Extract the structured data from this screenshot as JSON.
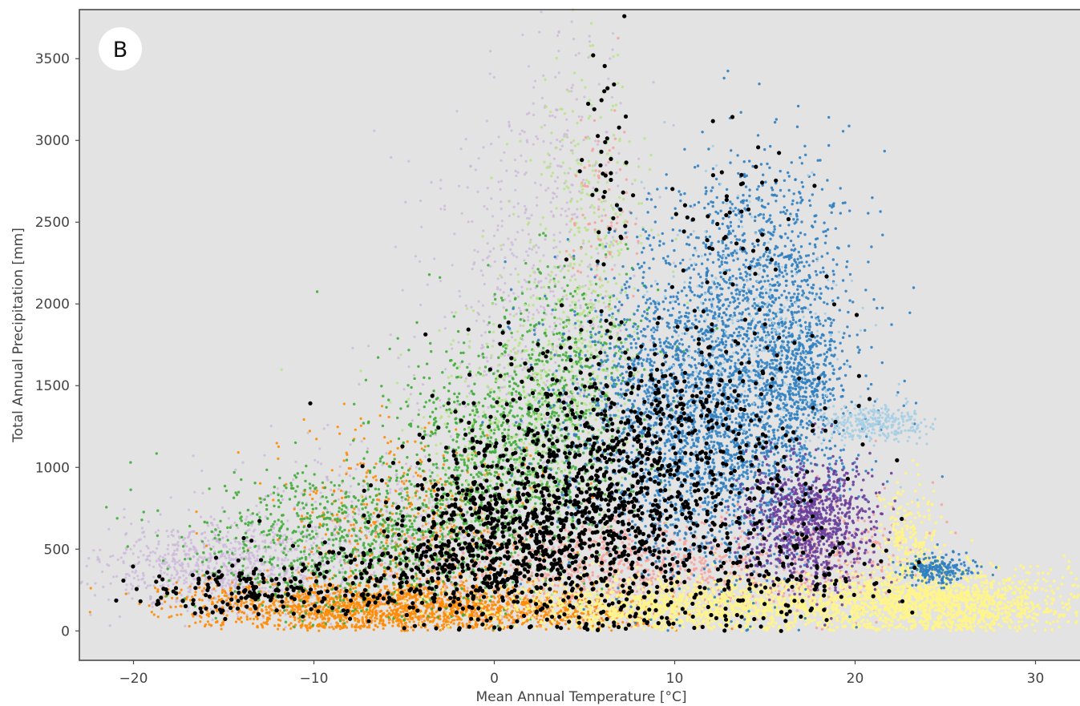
{
  "chart_data": {
    "type": "scatter",
    "panel_label": "B",
    "xlabel": "Mean Annual Temperature [°C]",
    "ylabel": "Total Annual Precipitation [mm]",
    "xlim": [
      -23,
      33
    ],
    "ylim": [
      -180,
      3800
    ],
    "xticks": [
      -20,
      -10,
      0,
      10,
      20,
      30
    ],
    "xtick_labels": [
      "−20",
      "−10",
      "0",
      "10",
      "20",
      "30"
    ],
    "yticks": [
      0,
      500,
      1000,
      1500,
      2000,
      2500,
      3000,
      3500
    ],
    "ytick_labels": [
      "0",
      "500",
      "1000",
      "1500",
      "2000",
      "2500",
      "3000",
      "3500"
    ],
    "grid": false,
    "background_color": "#e3e3e3",
    "series": [
      {
        "color": "#cbb6d9",
        "size": 1.6,
        "opacity": 0.75,
        "clusters": [
          {
            "cx": -15,
            "cy": 380,
            "sx": 3.2,
            "sy": 140,
            "n": 900
          },
          {
            "cx": -6,
            "cy": 650,
            "sx": 4.5,
            "sy": 260,
            "n": 500
          },
          {
            "cx": 2,
            "cy": 1900,
            "sx": 3.2,
            "sy": 650,
            "n": 520
          },
          {
            "cx": 3.5,
            "cy": 2900,
            "sx": 1.6,
            "sy": 450,
            "n": 160
          }
        ]
      },
      {
        "color": "#ff8a00",
        "size": 1.6,
        "opacity": 0.9,
        "clusters": [
          {
            "cx": -7,
            "cy": 150,
            "sx": 5,
            "sy": 80,
            "n": 1600
          },
          {
            "cx": -4,
            "cy": 700,
            "sx": 4,
            "sy": 280,
            "n": 450
          },
          {
            "cx": 2,
            "cy": 120,
            "sx": 4,
            "sy": 60,
            "n": 500
          }
        ]
      },
      {
        "color": "#40ad3a",
        "size": 1.7,
        "opacity": 0.9,
        "clusters": [
          {
            "cx": -8,
            "cy": 550,
            "sx": 4.5,
            "sy": 220,
            "n": 900
          },
          {
            "cx": 0,
            "cy": 1050,
            "sx": 3.2,
            "sy": 380,
            "n": 1000
          },
          {
            "cx": 4,
            "cy": 1500,
            "sx": 2.2,
            "sy": 400,
            "n": 420
          }
        ]
      },
      {
        "color": "#b9e48a",
        "size": 1.7,
        "opacity": 0.85,
        "clusters": [
          {
            "cx": 4.5,
            "cy": 1800,
            "sx": 2,
            "sy": 550,
            "n": 420
          },
          {
            "cx": 5.5,
            "cy": 2700,
            "sx": 1.2,
            "sy": 550,
            "n": 150
          },
          {
            "cx": 1,
            "cy": 1200,
            "sx": 3,
            "sy": 350,
            "n": 300
          }
        ]
      },
      {
        "color": "#f7a19a",
        "size": 1.7,
        "opacity": 0.85,
        "clusters": [
          {
            "cx": 8,
            "cy": 380,
            "sx": 6,
            "sy": 150,
            "n": 900
          },
          {
            "cx": 6,
            "cy": 2600,
            "sx": 1,
            "sy": 300,
            "n": 80
          },
          {
            "cx": 19,
            "cy": 500,
            "sx": 2.5,
            "sy": 200,
            "n": 200
          }
        ]
      },
      {
        "color": "#fff48a",
        "size": 1.8,
        "opacity": 0.95,
        "clusters": [
          {
            "cx": 12,
            "cy": 160,
            "sx": 6,
            "sy": 80,
            "n": 1600
          },
          {
            "cx": 25,
            "cy": 180,
            "sx": 3.5,
            "sy": 100,
            "n": 1400
          },
          {
            "cx": 23,
            "cy": 550,
            "sx": 0.8,
            "sy": 180,
            "n": 250
          }
        ]
      },
      {
        "color": "#2f7fc1",
        "size": 1.7,
        "opacity": 0.9,
        "clusters": [
          {
            "cx": 12,
            "cy": 1350,
            "sx": 3.8,
            "sy": 480,
            "n": 3000
          },
          {
            "cx": 15,
            "cy": 2300,
            "sx": 2.5,
            "sy": 350,
            "n": 600
          },
          {
            "cx": 17,
            "cy": 1600,
            "sx": 1,
            "sy": 250,
            "n": 400
          },
          {
            "cx": 24.5,
            "cy": 380,
            "sx": 1,
            "sy": 50,
            "n": 220
          }
        ]
      },
      {
        "color": "#a6cee3",
        "size": 1.6,
        "opacity": 0.9,
        "clusters": [
          {
            "cx": 21,
            "cy": 1280,
            "sx": 1.5,
            "sy": 60,
            "n": 320
          },
          {
            "cx": 14,
            "cy": 1750,
            "sx": 3,
            "sy": 500,
            "n": 280
          }
        ]
      },
      {
        "color": "#6a3d9a",
        "size": 1.8,
        "opacity": 0.9,
        "clusters": [
          {
            "cx": 17.5,
            "cy": 660,
            "sx": 1.8,
            "sy": 190,
            "n": 900
          }
        ]
      },
      {
        "color": "#000000",
        "size": 2.6,
        "opacity": 1.0,
        "clusters": [
          {
            "cx": -14,
            "cy": 250,
            "sx": 2.5,
            "sy": 70,
            "n": 150
          },
          {
            "cx": -5,
            "cy": 350,
            "sx": 4,
            "sy": 150,
            "n": 200
          },
          {
            "cx": 1,
            "cy": 600,
            "sx": 3.5,
            "sy": 260,
            "n": 700
          },
          {
            "cx": 6,
            "cy": 900,
            "sx": 4,
            "sy": 450,
            "n": 650
          },
          {
            "cx": 11,
            "cy": 950,
            "sx": 4,
            "sy": 550,
            "n": 500
          },
          {
            "cx": 6,
            "cy": 2900,
            "sx": 0.8,
            "sy": 350,
            "n": 40
          },
          {
            "cx": 14,
            "cy": 2500,
            "sx": 2,
            "sy": 350,
            "n": 40
          },
          {
            "cx": 18,
            "cy": 300,
            "sx": 2.5,
            "sy": 150,
            "n": 80
          }
        ]
      }
    ]
  }
}
